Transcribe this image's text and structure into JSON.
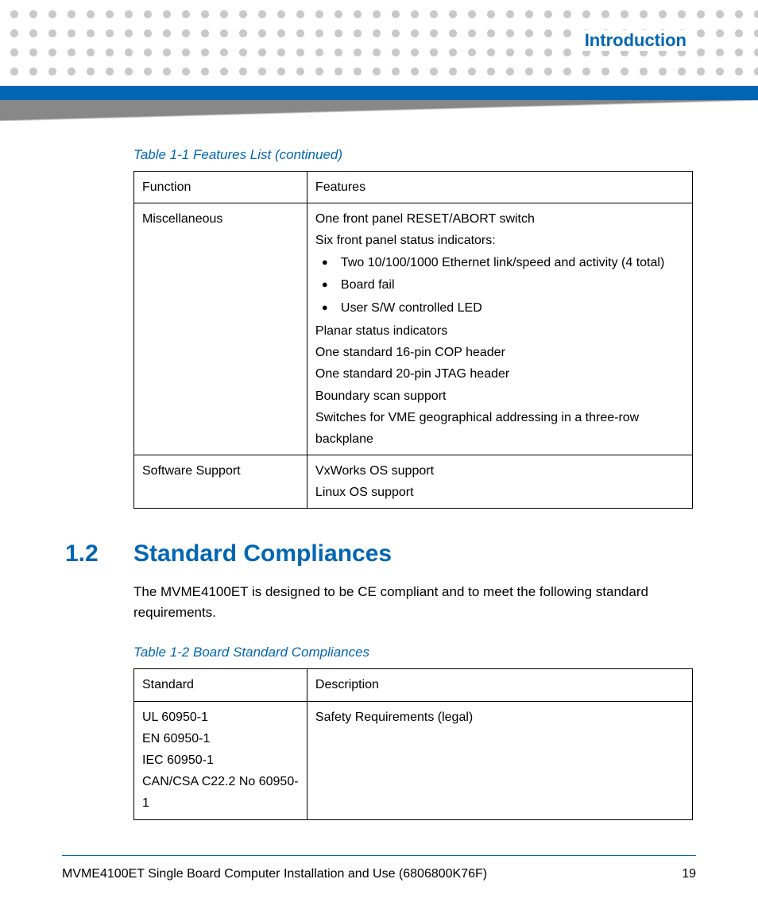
{
  "colors": {
    "accent": "#0066b3",
    "dot": "#c9c9c9",
    "text": "#000000",
    "background": "#ffffff"
  },
  "header": {
    "chapter_title": "Introduction"
  },
  "table1": {
    "caption": "Table 1-1 Features List (continued)",
    "columns": [
      "Function",
      "Features"
    ],
    "rows": [
      {
        "function": "Miscellaneous",
        "lines_before": [
          "One front panel RESET/ABORT switch",
          "Six front panel status indicators:"
        ],
        "bullets": [
          "Two 10/100/1000 Ethernet link/speed and activity (4 total)",
          "Board fail",
          "User S/W controlled LED"
        ],
        "lines_after": [
          "Planar status indicators",
          "One standard 16-pin COP header",
          "One standard 20-pin JTAG header",
          "Boundary scan support",
          "Switches for VME geographical addressing in a three-row backplane"
        ]
      },
      {
        "function": "Software Support",
        "lines_before": [
          "VxWorks OS support",
          "Linux OS support"
        ],
        "bullets": [],
        "lines_after": []
      }
    ]
  },
  "section": {
    "number": "1.2",
    "title": "Standard Compliances",
    "body": "The MVME4100ET is designed to be CE compliant and to meet the following standard requirements."
  },
  "table2": {
    "caption": "Table 1-2 Board Standard Compliances",
    "columns": [
      "Standard",
      "Description"
    ],
    "rows": [
      {
        "standards": [
          "UL 60950-1",
          "EN 60950-1",
          "IEC 60950-1",
          "CAN/CSA C22.2 No 60950-1"
        ],
        "description": "Safety Requirements (legal)"
      }
    ]
  },
  "footer": {
    "doc_title": "MVME4100ET Single Board Computer Installation and Use (6806800K76F)",
    "page_number": "19"
  }
}
